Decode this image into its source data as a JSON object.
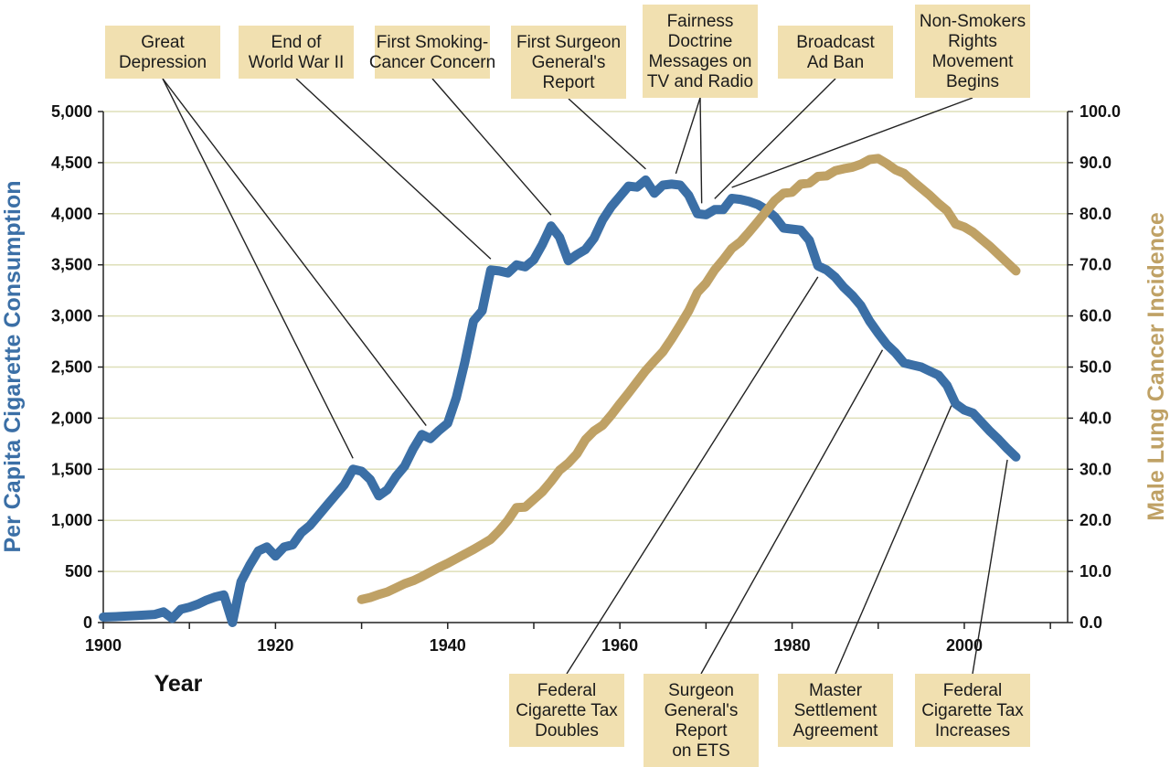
{
  "chart_data": {
    "type": "line",
    "xlabel": "Year",
    "ylabel_left": "Per Capita Cigarette Consumption",
    "ylabel_right": "Male Lung Cancer Incidence",
    "xlim": [
      1900,
      2012
    ],
    "ylim_left": [
      0,
      5000
    ],
    "ylim_right": [
      0,
      100
    ],
    "x_ticks": [
      "1900",
      "1920",
      "1940",
      "1960",
      "1980",
      "2000"
    ],
    "y_ticks_left": [
      "0",
      "500",
      "1,000",
      "1,500",
      "2,000",
      "2,500",
      "3,000",
      "3,500",
      "4,000",
      "4,500",
      "5,000"
    ],
    "y_ticks_right": [
      "0.0",
      "10.0",
      "20.0",
      "30.0",
      "40.0",
      "50.0",
      "60.0",
      "70.0",
      "80.0",
      "90.0",
      "100.0"
    ],
    "colors": {
      "consumption": "#3b6fa6",
      "incidence": "#bfa165",
      "annotation_bg": "#f1e0b0",
      "grid": "#dedfb8"
    },
    "series": [
      {
        "name": "Per Capita Cigarette Consumption",
        "axis": "left",
        "points": [
          [
            1900,
            54
          ],
          [
            1902,
            60
          ],
          [
            1904,
            70
          ],
          [
            1906,
            80
          ],
          [
            1907,
            105
          ],
          [
            1908,
            40
          ],
          [
            1909,
            130
          ],
          [
            1910,
            150
          ],
          [
            1911,
            180
          ],
          [
            1912,
            220
          ],
          [
            1913,
            250
          ],
          [
            1914,
            270
          ],
          [
            1915,
            0
          ],
          [
            1916,
            400
          ],
          [
            1917,
            560
          ],
          [
            1918,
            700
          ],
          [
            1919,
            740
          ],
          [
            1920,
            650
          ],
          [
            1921,
            740
          ],
          [
            1922,
            760
          ],
          [
            1923,
            880
          ],
          [
            1924,
            950
          ],
          [
            1925,
            1050
          ],
          [
            1926,
            1150
          ],
          [
            1927,
            1250
          ],
          [
            1928,
            1350
          ],
          [
            1929,
            1500
          ],
          [
            1930,
            1480
          ],
          [
            1931,
            1400
          ],
          [
            1932,
            1240
          ],
          [
            1933,
            1300
          ],
          [
            1934,
            1430
          ],
          [
            1935,
            1530
          ],
          [
            1936,
            1700
          ],
          [
            1937,
            1840
          ],
          [
            1938,
            1800
          ],
          [
            1939,
            1880
          ],
          [
            1940,
            1950
          ],
          [
            1941,
            2200
          ],
          [
            1942,
            2550
          ],
          [
            1943,
            2950
          ],
          [
            1944,
            3050
          ],
          [
            1945,
            3450
          ],
          [
            1946,
            3440
          ],
          [
            1947,
            3420
          ],
          [
            1948,
            3500
          ],
          [
            1949,
            3480
          ],
          [
            1950,
            3550
          ],
          [
            1951,
            3700
          ],
          [
            1952,
            3880
          ],
          [
            1953,
            3770
          ],
          [
            1954,
            3540
          ],
          [
            1955,
            3600
          ],
          [
            1956,
            3650
          ],
          [
            1957,
            3760
          ],
          [
            1958,
            3940
          ],
          [
            1959,
            4070
          ],
          [
            1960,
            4170
          ],
          [
            1961,
            4270
          ],
          [
            1962,
            4260
          ],
          [
            1963,
            4330
          ],
          [
            1964,
            4200
          ],
          [
            1965,
            4280
          ],
          [
            1966,
            4290
          ],
          [
            1967,
            4280
          ],
          [
            1968,
            4180
          ],
          [
            1969,
            4000
          ],
          [
            1970,
            3990
          ],
          [
            1971,
            4040
          ],
          [
            1972,
            4040
          ],
          [
            1973,
            4150
          ],
          [
            1974,
            4140
          ],
          [
            1975,
            4120
          ],
          [
            1976,
            4090
          ],
          [
            1977,
            4040
          ],
          [
            1978,
            3970
          ],
          [
            1979,
            3860
          ],
          [
            1980,
            3850
          ],
          [
            1981,
            3840
          ],
          [
            1982,
            3740
          ],
          [
            1983,
            3490
          ],
          [
            1984,
            3450
          ],
          [
            1985,
            3380
          ],
          [
            1986,
            3280
          ],
          [
            1987,
            3200
          ],
          [
            1988,
            3100
          ],
          [
            1989,
            2950
          ],
          [
            1990,
            2830
          ],
          [
            1991,
            2720
          ],
          [
            1992,
            2640
          ],
          [
            1993,
            2540
          ],
          [
            1994,
            2520
          ],
          [
            1995,
            2500
          ],
          [
            1996,
            2460
          ],
          [
            1997,
            2420
          ],
          [
            1998,
            2320
          ],
          [
            1999,
            2140
          ],
          [
            2000,
            2080
          ],
          [
            2001,
            2050
          ],
          [
            2002,
            1960
          ],
          [
            2003,
            1870
          ],
          [
            2004,
            1790
          ],
          [
            2005,
            1700
          ],
          [
            2006,
            1620
          ]
        ]
      },
      {
        "name": "Male Lung Cancer Incidence",
        "axis": "right",
        "points": [
          [
            1930,
            4.5
          ],
          [
            1931,
            4.9
          ],
          [
            1932,
            5.5
          ],
          [
            1933,
            6.0
          ],
          [
            1934,
            6.8
          ],
          [
            1935,
            7.6
          ],
          [
            1936,
            8.2
          ],
          [
            1937,
            9.0
          ],
          [
            1938,
            9.9
          ],
          [
            1939,
            10.8
          ],
          [
            1940,
            11.6
          ],
          [
            1941,
            12.5
          ],
          [
            1942,
            13.4
          ],
          [
            1943,
            14.3
          ],
          [
            1944,
            15.3
          ],
          [
            1945,
            16.3
          ],
          [
            1946,
            18.0
          ],
          [
            1947,
            20.0
          ],
          [
            1948,
            22.5
          ],
          [
            1949,
            22.6
          ],
          [
            1950,
            24.1
          ],
          [
            1951,
            25.6
          ],
          [
            1952,
            27.6
          ],
          [
            1953,
            29.8
          ],
          [
            1954,
            31.2
          ],
          [
            1955,
            33.0
          ],
          [
            1956,
            35.8
          ],
          [
            1957,
            37.5
          ],
          [
            1958,
            38.6
          ],
          [
            1959,
            40.6
          ],
          [
            1960,
            42.8
          ],
          [
            1961,
            44.9
          ],
          [
            1962,
            47.1
          ],
          [
            1963,
            49.3
          ],
          [
            1964,
            51.2
          ],
          [
            1965,
            53.0
          ],
          [
            1966,
            55.5
          ],
          [
            1967,
            58.2
          ],
          [
            1968,
            61.0
          ],
          [
            1969,
            64.6
          ],
          [
            1970,
            66.4
          ],
          [
            1971,
            69.0
          ],
          [
            1972,
            71.0
          ],
          [
            1973,
            73.2
          ],
          [
            1974,
            74.5
          ],
          [
            1975,
            76.4
          ],
          [
            1976,
            78.4
          ],
          [
            1977,
            80.5
          ],
          [
            1978,
            82.6
          ],
          [
            1979,
            84.0
          ],
          [
            1980,
            84.2
          ],
          [
            1981,
            85.8
          ],
          [
            1982,
            86.0
          ],
          [
            1983,
            87.3
          ],
          [
            1984,
            87.4
          ],
          [
            1985,
            88.4
          ],
          [
            1986,
            88.8
          ],
          [
            1987,
            89.1
          ],
          [
            1988,
            89.7
          ],
          [
            1989,
            90.6
          ],
          [
            1990,
            90.8
          ],
          [
            1991,
            89.8
          ],
          [
            1992,
            88.6
          ],
          [
            1993,
            87.9
          ],
          [
            1994,
            86.4
          ],
          [
            1995,
            85.0
          ],
          [
            1996,
            83.6
          ],
          [
            1997,
            82.0
          ],
          [
            1998,
            80.6
          ],
          [
            1999,
            78.0
          ],
          [
            2000,
            77.4
          ],
          [
            2001,
            76.4
          ],
          [
            2002,
            75.0
          ],
          [
            2003,
            73.6
          ],
          [
            2004,
            72.0
          ],
          [
            2005,
            70.4
          ],
          [
            2006,
            68.8
          ]
        ]
      }
    ],
    "annotations": [
      {
        "lines": [
          "Great",
          "Depression"
        ],
        "position": "top",
        "targets": [
          1929,
          1937.5
        ]
      },
      {
        "lines": [
          "End of",
          "World War II"
        ],
        "position": "top",
        "targets": [
          1945
        ]
      },
      {
        "lines": [
          "First Smoking-",
          "Cancer Concern"
        ],
        "position": "top",
        "targets": [
          1952
        ]
      },
      {
        "lines": [
          "First Surgeon",
          "General's",
          "Report"
        ],
        "position": "top",
        "targets": [
          1963
        ]
      },
      {
        "lines": [
          "Fairness",
          "Doctrine",
          "Messages on",
          "TV and Radio"
        ],
        "position": "top",
        "targets": [
          1966.5,
          1969.5
        ]
      },
      {
        "lines": [
          "Broadcast",
          "Ad Ban"
        ],
        "position": "top",
        "targets": [
          1971
        ]
      },
      {
        "lines": [
          "Non-Smokers",
          "Rights",
          "Movement",
          "Begins"
        ],
        "position": "top",
        "targets": [
          1973
        ]
      },
      {
        "lines": [
          "Federal",
          "Cigarette Tax",
          "Doubles"
        ],
        "position": "bottom",
        "targets": [
          1983
        ]
      },
      {
        "lines": [
          "Surgeon",
          "General's",
          "Report",
          "on ETS"
        ],
        "position": "bottom",
        "targets": [
          1990.5
        ]
      },
      {
        "lines": [
          "Master",
          "Settlement",
          "Agreement"
        ],
        "position": "bottom",
        "targets": [
          1998.5
        ]
      },
      {
        "lines": [
          "Federal",
          "Cigarette Tax",
          "Increases"
        ],
        "position": "bottom",
        "targets": [
          2005
        ]
      }
    ]
  }
}
